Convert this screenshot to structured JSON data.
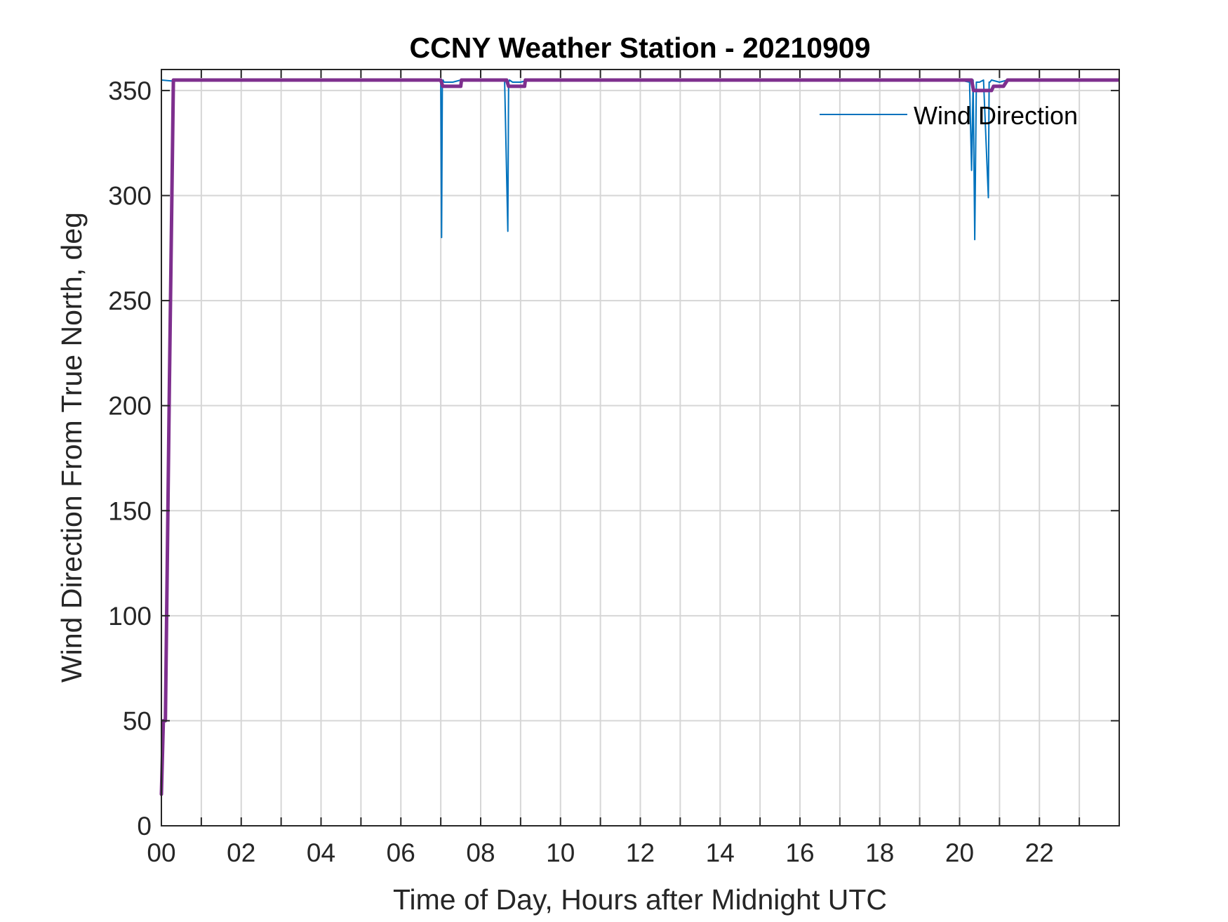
{
  "chart_data": {
    "type": "line",
    "title": "CCNY Weather Station - 20210909",
    "xlabel": "Time of Day, Hours after Midnight UTC",
    "ylabel": "Wind Direction From True North, deg",
    "xlim": [
      0,
      24
    ],
    "ylim": [
      0,
      360
    ],
    "xticks": [
      0,
      2,
      4,
      6,
      8,
      10,
      12,
      14,
      16,
      18,
      20,
      22
    ],
    "xtick_labels": [
      "00",
      "02",
      "04",
      "06",
      "08",
      "10",
      "12",
      "14",
      "16",
      "18",
      "20",
      "22"
    ],
    "yticks": [
      0,
      50,
      100,
      150,
      200,
      250,
      300,
      350
    ],
    "ytick_labels": [
      "0",
      "50",
      "100",
      "150",
      "200",
      "250",
      "300",
      "350"
    ],
    "grid": true,
    "legend_position": "top-right",
    "series": [
      {
        "name": "Wind Direction",
        "color": "#0072BD",
        "x": [
          0.0,
          0.3,
          0.4,
          1.0,
          2.0,
          3.0,
          4.0,
          5.0,
          6.0,
          7.0,
          7.02,
          7.04,
          7.06,
          7.08,
          7.3,
          7.5,
          8.0,
          8.6,
          8.68,
          8.7,
          8.72,
          8.8,
          9.0,
          9.2,
          10.0,
          11.0,
          12.0,
          13.0,
          14.0,
          15.0,
          16.0,
          17.0,
          18.0,
          19.0,
          20.0,
          20.25,
          20.3,
          20.34,
          20.38,
          20.42,
          20.5,
          20.6,
          20.72,
          20.74,
          20.76,
          20.8,
          21.0,
          21.2,
          22.0,
          23.0,
          23.97
        ],
        "values": [
          355,
          354.5,
          355,
          355,
          355,
          355,
          355,
          355,
          355,
          355,
          280,
          354,
          355,
          354,
          354,
          355,
          355,
          355,
          283,
          354,
          355,
          354,
          354,
          355,
          355,
          355,
          355,
          355,
          355,
          355,
          355,
          355,
          355,
          355,
          355,
          354,
          312,
          355,
          279,
          354,
          354,
          355,
          299,
          354,
          354,
          355,
          354,
          355,
          355,
          355,
          355
        ]
      },
      {
        "name": "",
        "color": "#7E2F8E",
        "x": [
          0.0,
          0.05,
          0.1,
          0.2,
          0.3,
          0.4,
          1.0,
          2.0,
          3.0,
          4.0,
          5.0,
          6.0,
          7.0,
          7.05,
          7.5,
          7.52,
          8.0,
          8.65,
          8.7,
          9.1,
          9.12,
          10.0,
          11.0,
          12.0,
          13.0,
          14.0,
          15.0,
          16.0,
          17.0,
          18.0,
          19.0,
          20.0,
          20.3,
          20.35,
          20.8,
          20.85,
          21.1,
          21.2,
          22.0,
          23.0,
          23.97
        ],
        "values": [
          15,
          50,
          50,
          210,
          355,
          355,
          355,
          355,
          355,
          355,
          355,
          355,
          355,
          352,
          352,
          355,
          355,
          355,
          352,
          352,
          355,
          355,
          355,
          355,
          355,
          355,
          355,
          355,
          355,
          355,
          355,
          355,
          355,
          350,
          350,
          352,
          352,
          355,
          355,
          355,
          355
        ]
      }
    ]
  }
}
